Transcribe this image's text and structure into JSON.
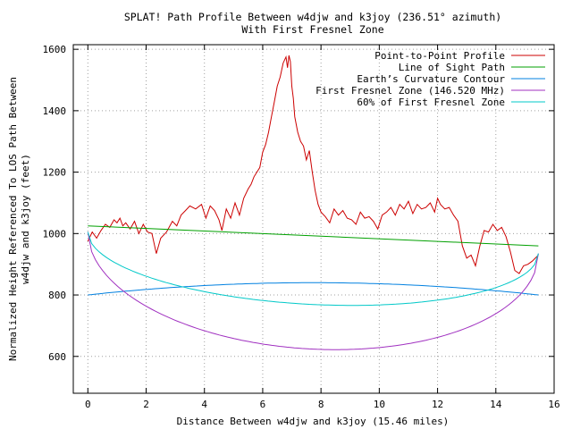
{
  "chart_data": {
    "type": "line",
    "title": "SPLAT! Path Profile Between w4djw and k3joy (236.51° azimuth)",
    "subtitle": "With First Fresnel Zone",
    "xlabel": "Distance Between w4djw and k3joy (15.46 miles)",
    "ylabel": "Normalized Height Referenced To LOS Path Between",
    "ylabel2": "w4djw and k3joy (feet)",
    "xlim": [
      -0.5,
      16
    ],
    "ylim": [
      480,
      1615
    ],
    "x_ticks": [
      "0",
      "2",
      "4",
      "6",
      "8",
      "10",
      "12",
      "14",
      "16"
    ],
    "y_ticks": [
      "600",
      "800",
      "1000",
      "1200",
      "1400",
      "1600"
    ],
    "x_tick_values": [
      0,
      2,
      4,
      6,
      8,
      10,
      12,
      14,
      16
    ],
    "y_tick_values": [
      600,
      800,
      1000,
      1200,
      1400,
      1600
    ],
    "grid": true,
    "legend_position": "top-right",
    "series": [
      {
        "name": "Point-to-Point Profile",
        "color": "#cc0000",
        "x": [
          0,
          0.15,
          0.3,
          0.45,
          0.6,
          0.75,
          0.9,
          1.0,
          1.1,
          1.2,
          1.3,
          1.45,
          1.6,
          1.75,
          1.9,
          2.05,
          2.2,
          2.35,
          2.5,
          2.7,
          2.9,
          3.05,
          3.2,
          3.35,
          3.5,
          3.7,
          3.9,
          4.05,
          4.2,
          4.35,
          4.5,
          4.6,
          4.75,
          4.9,
          5.05,
          5.2,
          5.35,
          5.5,
          5.6,
          5.7,
          5.8,
          5.9,
          6.0,
          6.1,
          6.2,
          6.3,
          6.4,
          6.5,
          6.6,
          6.7,
          6.8,
          6.85,
          6.9,
          6.95,
          7.0,
          7.05,
          7.1,
          7.2,
          7.3,
          7.4,
          7.5,
          7.6,
          7.7,
          7.8,
          7.9,
          8.0,
          8.15,
          8.3,
          8.45,
          8.6,
          8.75,
          8.9,
          9.05,
          9.2,
          9.35,
          9.5,
          9.65,
          9.8,
          9.95,
          10.1,
          10.25,
          10.4,
          10.55,
          10.7,
          10.85,
          11.0,
          11.15,
          11.3,
          11.45,
          11.6,
          11.75,
          11.9,
          12.0,
          12.1,
          12.25,
          12.4,
          12.55,
          12.7,
          12.85,
          13.0,
          13.15,
          13.3,
          13.45,
          13.6,
          13.75,
          13.9,
          14.05,
          14.2,
          14.35,
          14.5,
          14.65,
          14.8,
          14.95,
          15.1,
          15.25,
          15.46
        ],
        "y": [
          975,
          1005,
          985,
          1010,
          1030,
          1020,
          1045,
          1035,
          1050,
          1025,
          1035,
          1015,
          1040,
          1000,
          1030,
          1005,
          1000,
          935,
          985,
          1005,
          1040,
          1025,
          1060,
          1075,
          1090,
          1080,
          1095,
          1050,
          1090,
          1075,
          1045,
          1010,
          1080,
          1050,
          1100,
          1060,
          1115,
          1145,
          1160,
          1185,
          1200,
          1215,
          1265,
          1290,
          1330,
          1380,
          1430,
          1480,
          1510,
          1555,
          1575,
          1540,
          1580,
          1560,
          1480,
          1440,
          1380,
          1330,
          1300,
          1285,
          1240,
          1270,
          1200,
          1140,
          1095,
          1070,
          1055,
          1035,
          1080,
          1060,
          1075,
          1050,
          1045,
          1030,
          1070,
          1050,
          1055,
          1040,
          1015,
          1060,
          1070,
          1085,
          1060,
          1095,
          1080,
          1105,
          1065,
          1095,
          1080,
          1085,
          1100,
          1070,
          1115,
          1095,
          1080,
          1085,
          1060,
          1040,
          960,
          920,
          930,
          895,
          960,
          1010,
          1005,
          1030,
          1010,
          1020,
          990,
          940,
          880,
          870,
          895,
          900,
          910,
          930
        ]
      },
      {
        "name": "Line of Sight Path",
        "color": "#00a000",
        "x": [
          0,
          15.46
        ],
        "y": [
          1025,
          960
        ]
      },
      {
        "name": "Earth’s Curvature Contour",
        "color": "#0080e0",
        "shape": "parabola",
        "x": [
          0,
          7.73,
          15.46
        ],
        "y": [
          800,
          840,
          800
        ]
      },
      {
        "name": "First Fresnel Zone (146.520 MHz)",
        "color": "#a030c0",
        "shape": "ellipse",
        "x": [
          0,
          8.45,
          15.46
        ],
        "y": [
          1005,
          622,
          935
        ]
      },
      {
        "name": "60% of First Fresnel Zone",
        "color": "#00c8c8",
        "shape": "ellipse",
        "x": [
          0,
          8.0,
          15.46
        ],
        "y": [
          1005,
          768,
          935
        ]
      }
    ]
  }
}
